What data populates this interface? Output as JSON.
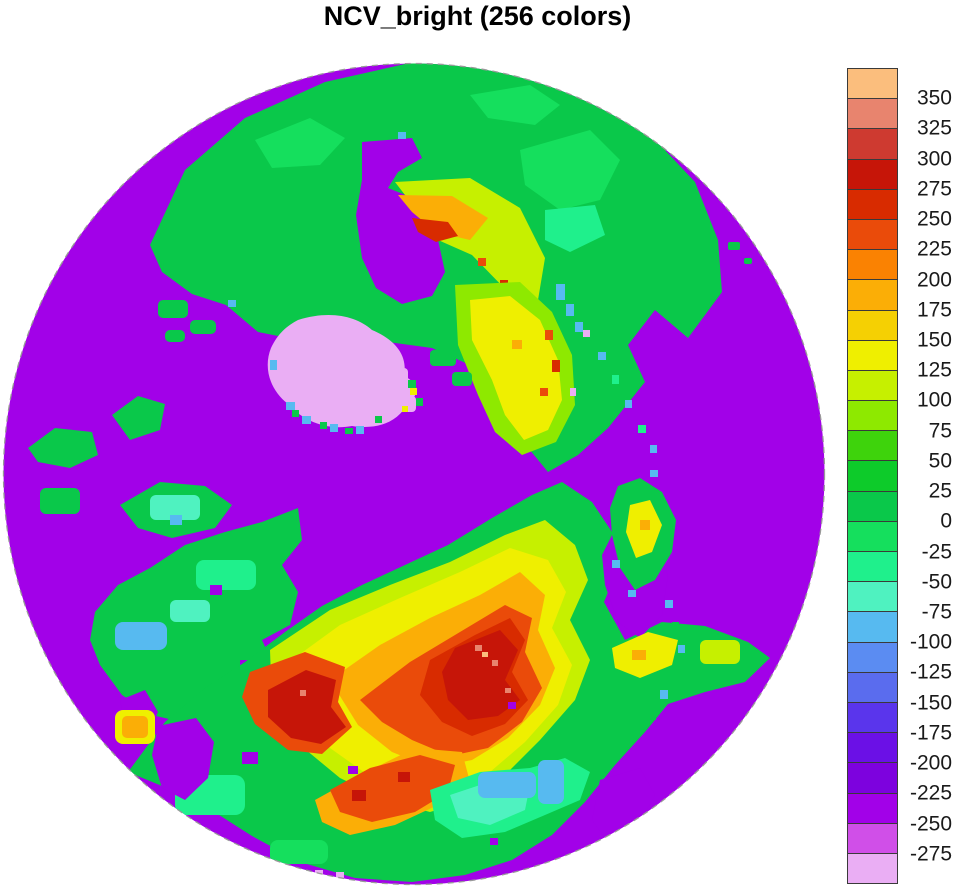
{
  "title": "NCV_bright (256 colors)",
  "colorbar": {
    "tick_labels": [
      "350",
      "325",
      "300",
      "275",
      "250",
      "225",
      "200",
      "175",
      "150",
      "125",
      "100",
      "75",
      "50",
      "25",
      "0",
      "-25",
      "-50",
      "-75",
      "-100",
      "-125",
      "-150",
      "-175",
      "-200",
      "-225",
      "-250",
      "-275"
    ],
    "box_colors": [
      "#FBBE7D",
      "#E8846E",
      "#CE3A30",
      "#C61508",
      "#D82B00",
      "#EA4B0A",
      "#FA8202",
      "#FBAE06",
      "#F5D003",
      "#EFEF00",
      "#C6F000",
      "#8EE900",
      "#3ED30C",
      "#0DCB2A",
      "#0AC84A",
      "#15DF5D",
      "#1FF08C",
      "#4FF2C0",
      "#57BAF0",
      "#5B8CF2",
      "#5A6CEE",
      "#5A35EC",
      "#6B10E6",
      "#7D02DE",
      "#A201E8",
      "#D04FE8",
      "#EAAEF4"
    ],
    "outline_color": "#3a3a3a",
    "label_color": "#1a1a1a"
  },
  "map": {
    "background": "#ffffff",
    "ocean_color": "#A201E8",
    "boundary_color": "#999999",
    "boundary_style": "dashed",
    "palette": {
      "green": "#0AC84A",
      "spring": "#15DF5D",
      "mint": "#1FF08C",
      "aqua": "#4FF2C0",
      "sky": "#57BAF0",
      "grass": "#3ED30C",
      "lime": "#8EE900",
      "ygreen": "#C6F000",
      "yellow": "#EFEF00",
      "gold": "#F5D003",
      "amber": "#FBAE06",
      "orange": "#FA8202",
      "verm": "#EA4B0A",
      "red": "#D82B00",
      "darkred": "#C61508",
      "brick": "#CE3A30",
      "salmon": "#E8846E",
      "peach": "#FBBE7D",
      "plum": "#EAAEF4",
      "orchid": "#D04FE8"
    }
  }
}
